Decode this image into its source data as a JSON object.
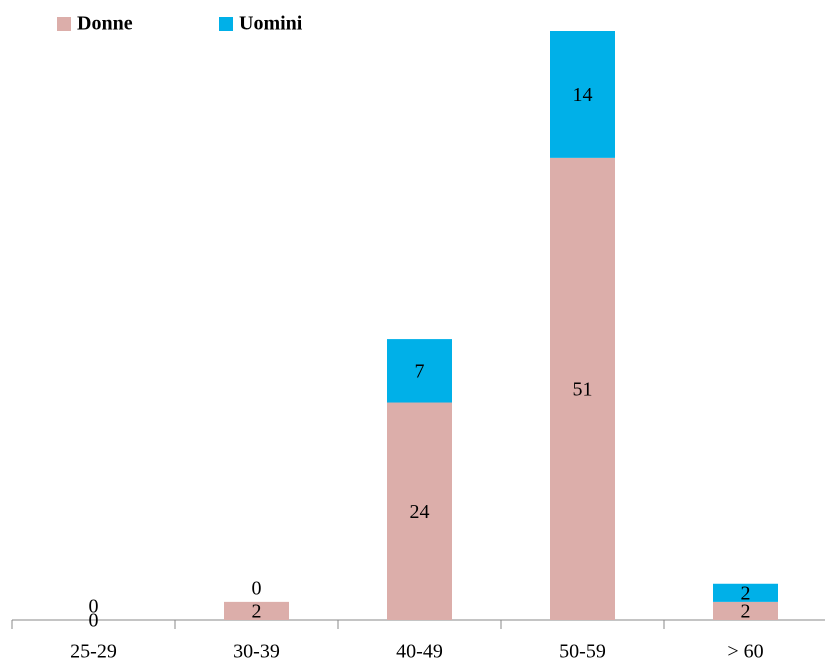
{
  "chart_data": {
    "type": "stacked_bar",
    "categories": [
      "25-29",
      "30-39",
      "40-49",
      "50-59",
      "> 60"
    ],
    "series": [
      {
        "name": "Donne",
        "color": "#dcaeaa",
        "values": [
          0,
          2,
          24,
          51,
          2
        ]
      },
      {
        "name": "Uomini",
        "color": "#00b0e8",
        "values": [
          0,
          0,
          7,
          14,
          2
        ]
      }
    ],
    "legend": "top-left"
  }
}
